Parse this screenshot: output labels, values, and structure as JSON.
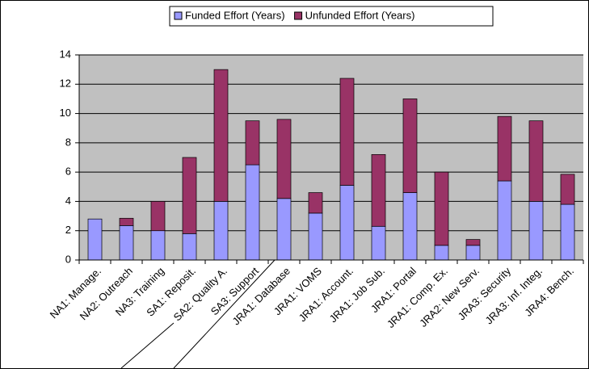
{
  "chart_data": {
    "type": "stacked_bar",
    "categories": [
      "NA1: Manage.",
      "NA2: Outreach",
      "NA3: Training",
      "SA1: Reposit.",
      "SA2: Quality A.",
      "SA3: Support",
      "JRA1: Database",
      "JRA1: VOMS",
      "JRA1: Account.",
      "JRA1: Job Sub.",
      "JRA1: Portal",
      "JRA1: Comp. Ex.",
      "JRA2: New Serv.",
      "JRA3: Security",
      "JRA3: Inf. Integ.",
      "JRA4: Bench."
    ],
    "series": [
      {
        "name": "Funded Effort (Years)",
        "color": "#9999ff",
        "values": [
          2.8,
          2.35,
          2.0,
          1.8,
          4.0,
          6.5,
          4.2,
          3.2,
          5.1,
          2.3,
          4.6,
          1.0,
          1.0,
          5.4,
          4.0,
          3.8
        ]
      },
      {
        "name": "Unfunded Effort (Years)",
        "color": "#993366",
        "values": [
          0,
          0.5,
          2.0,
          5.2,
          9.0,
          3.0,
          5.4,
          1.4,
          7.3,
          4.9,
          6.4,
          5.0,
          0.4,
          4.4,
          5.5,
          2.05
        ]
      }
    ],
    "ylim": [
      0,
      14
    ],
    "yticks": [
      0,
      2,
      4,
      6,
      8,
      10,
      12,
      14
    ],
    "grid": true,
    "legend": "top"
  }
}
